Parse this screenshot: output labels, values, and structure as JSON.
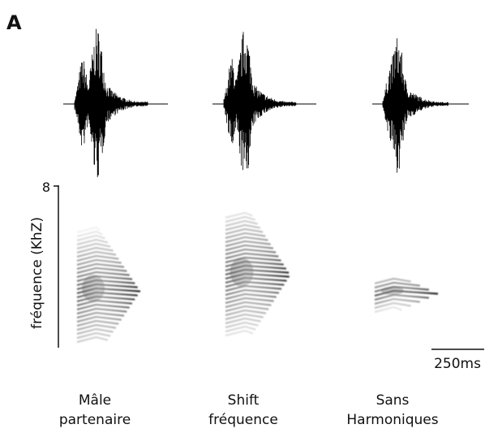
{
  "panel_label": "A",
  "y_axis": {
    "label": "fréquence (KhZ)",
    "top_tick": "8"
  },
  "scale_bar": {
    "label": "250ms"
  },
  "conditions": [
    {
      "lines": [
        "Mâle",
        "partenaire"
      ]
    },
    {
      "lines": [
        "Shift",
        "fréquence"
      ]
    },
    {
      "lines": [
        "Sans",
        "Harmoniques"
      ]
    }
  ]
}
